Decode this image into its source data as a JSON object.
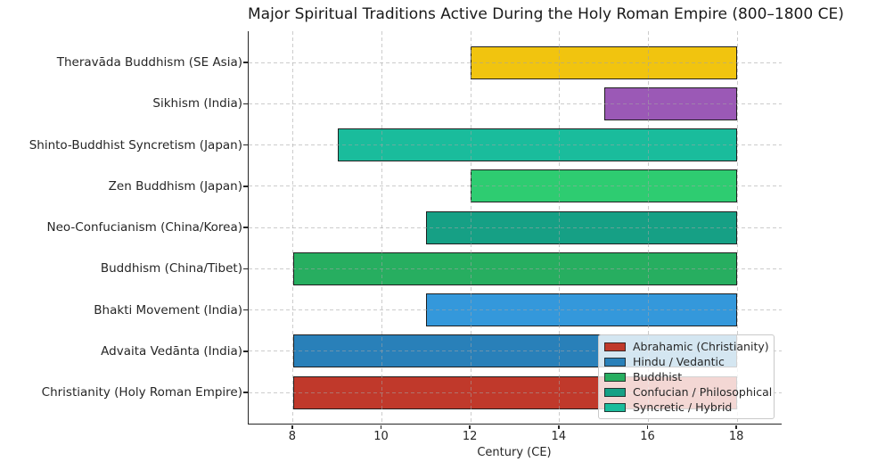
{
  "chart_data": {
    "type": "bar",
    "orientation": "horizontal",
    "title": "Major Spiritual Traditions Active During the Holy Roman Empire (800–1800 CE)",
    "xlabel": "Century (CE)",
    "xlim": [
      7,
      19
    ],
    "xticks": [
      8,
      10,
      12,
      14,
      16,
      18
    ],
    "grid": true,
    "bars": [
      {
        "label": "Theravāda Buddhism (SE Asia)",
        "start": 12,
        "end": 18,
        "color": "#f1c40f"
      },
      {
        "label": "Sikhism (India)",
        "start": 15,
        "end": 18,
        "color": "#9b59b6"
      },
      {
        "label": "Shinto-Buddhist Syncretism (Japan)",
        "start": 9,
        "end": 18,
        "color": "#1abc9c"
      },
      {
        "label": "Zen Buddhism (Japan)",
        "start": 12,
        "end": 18,
        "color": "#2ecc71"
      },
      {
        "label": "Neo-Confucianism (China/Korea)",
        "start": 11,
        "end": 18,
        "color": "#16a085"
      },
      {
        "label": "Buddhism (China/Tibet)",
        "start": 8,
        "end": 18,
        "color": "#27ae60"
      },
      {
        "label": "Bhakti Movement (India)",
        "start": 11,
        "end": 18,
        "color": "#3498db"
      },
      {
        "label": "Advaita Vedānta (India)",
        "start": 8,
        "end": 18,
        "color": "#2980b9"
      },
      {
        "label": "Christianity (Holy Roman Empire)",
        "start": 8,
        "end": 18,
        "color": "#c0392b"
      }
    ],
    "legend": {
      "position": "lower right",
      "entries": [
        {
          "label": "Abrahamic (Christianity)",
          "color": "#c0392b"
        },
        {
          "label": "Hindu / Vedantic",
          "color": "#2980b9"
        },
        {
          "label": "Buddhist",
          "color": "#27ae60"
        },
        {
          "label": "Confucian / Philosophical",
          "color": "#16a085"
        },
        {
          "label": "Syncretic / Hybrid",
          "color": "#1abc9c"
        }
      ]
    }
  }
}
